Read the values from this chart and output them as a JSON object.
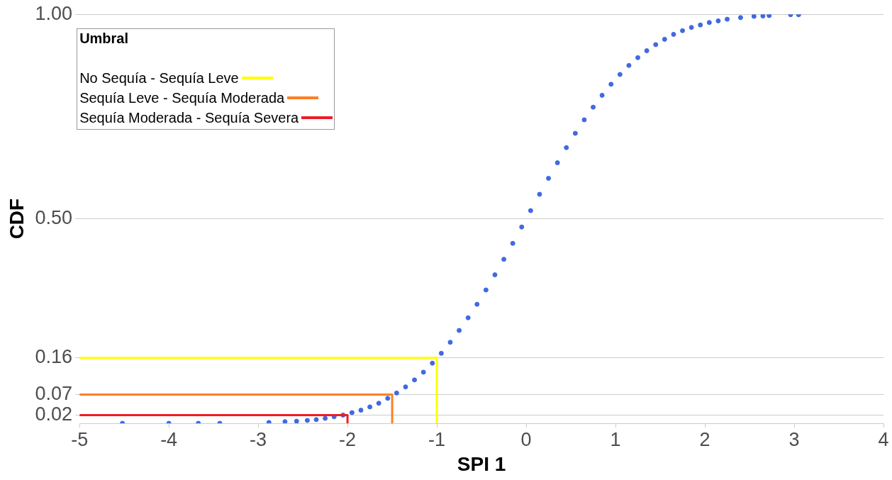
{
  "chart_data": {
    "type": "scatter",
    "xlabel": "SPI 1",
    "ylabel": "CDF",
    "legend_title": "Umbral",
    "legend": "top left",
    "grid": "y",
    "xlim": [
      -5,
      4
    ],
    "xticks": [
      -5,
      -4,
      -3,
      -2,
      -1,
      0,
      1,
      2,
      3,
      4
    ],
    "ylim": [
      0,
      1
    ],
    "yticks": [
      0.02,
      0.07,
      0.16,
      {
        "value": 0.5,
        "label": "0.50"
      },
      {
        "value": 1,
        "label": "1.00"
      }
    ],
    "series": [
      {
        "marker": "circle",
        "color": "#4169e1",
        "x": [
          -4.52,
          -4.0,
          -3.67,
          -3.43,
          -2.88,
          -2.7,
          -2.57,
          -2.45,
          -2.35,
          -2.25,
          -2.15,
          -2.05,
          -1.95,
          -1.85,
          -1.75,
          -1.65,
          -1.55,
          -1.45,
          -1.35,
          -1.25,
          -1.15,
          -1.05,
          -0.95,
          -0.85,
          -0.75,
          -0.65,
          -0.55,
          -0.45,
          -0.35,
          -0.25,
          -0.15,
          -0.05,
          0.05,
          0.15,
          0.25,
          0.35,
          0.45,
          0.55,
          0.65,
          0.75,
          0.85,
          0.95,
          1.05,
          1.15,
          1.25,
          1.35,
          1.45,
          1.55,
          1.65,
          1.75,
          1.85,
          1.95,
          2.05,
          2.15,
          2.25,
          2.4,
          2.55,
          2.65,
          2.72,
          2.96,
          3.05
        ],
        "values": [
          0.0,
          0.0,
          0.0,
          0.0,
          0.002,
          0.004,
          0.005,
          0.007,
          0.009,
          0.012,
          0.016,
          0.02,
          0.026,
          0.032,
          0.04,
          0.049,
          0.061,
          0.074,
          0.089,
          0.106,
          0.125,
          0.147,
          0.171,
          0.198,
          0.227,
          0.258,
          0.291,
          0.326,
          0.363,
          0.401,
          0.44,
          0.48,
          0.52,
          0.56,
          0.599,
          0.637,
          0.674,
          0.709,
          0.742,
          0.773,
          0.802,
          0.829,
          0.853,
          0.875,
          0.894,
          0.911,
          0.926,
          0.939,
          0.951,
          0.96,
          0.968,
          0.974,
          0.98,
          0.984,
          0.988,
          0.992,
          0.995,
          0.996,
          0.997,
          0.999,
          0.999
        ]
      },
      {
        "type": "line",
        "marker": "none",
        "name": "No Sequía - Sequía Leve",
        "color": "#ffff00",
        "x": [
          -5,
          -1,
          -1
        ],
        "values": [
          0.16,
          0.16,
          0
        ]
      },
      {
        "type": "line",
        "marker": "none",
        "name": "Sequía Leve - Sequía Moderada",
        "color": "#ff7f24",
        "x": [
          -5,
          -1.5,
          -1.5
        ],
        "values": [
          0.07,
          0.07,
          0
        ]
      },
      {
        "type": "line",
        "marker": "none",
        "name": "Sequía Moderada - Sequía Severa",
        "color": "#ee1c25",
        "x": [
          -5,
          -2,
          -2
        ],
        "values": [
          0.02,
          0.02,
          0
        ]
      }
    ]
  }
}
